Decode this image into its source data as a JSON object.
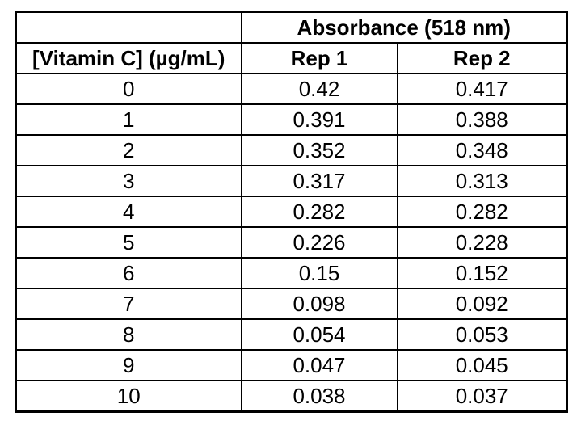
{
  "table": {
    "spanning_header": "Absorbance (518 nm)",
    "columns": [
      "[Vitamin C] (µg/mL)",
      "Rep 1",
      "Rep 2"
    ],
    "rows": [
      [
        "0",
        "0.42",
        "0.417"
      ],
      [
        "1",
        "0.391",
        "0.388"
      ],
      [
        "2",
        "0.352",
        "0.348"
      ],
      [
        "3",
        "0.317",
        "0.313"
      ],
      [
        "4",
        "0.282",
        "0.282"
      ],
      [
        "5",
        "0.226",
        "0.228"
      ],
      [
        "6",
        "0.15",
        "0.152"
      ],
      [
        "7",
        "0.098",
        "0.092"
      ],
      [
        "8",
        "0.054",
        "0.053"
      ],
      [
        "9",
        "0.047",
        "0.045"
      ],
      [
        "10",
        "0.038",
        "0.037"
      ]
    ]
  },
  "colors": {
    "border": "#000000",
    "text": "#000000",
    "background": "#ffffff"
  },
  "chart_data": {
    "type": "table",
    "title": "Absorbance (518 nm)",
    "xlabel": "[Vitamin C] (µg/mL)",
    "categories": [
      0,
      1,
      2,
      3,
      4,
      5,
      6,
      7,
      8,
      9,
      10
    ],
    "series": [
      {
        "name": "Rep 1",
        "values": [
          0.42,
          0.391,
          0.352,
          0.317,
          0.282,
          0.226,
          0.15,
          0.098,
          0.054,
          0.047,
          0.038
        ]
      },
      {
        "name": "Rep 2",
        "values": [
          0.417,
          0.388,
          0.348,
          0.313,
          0.282,
          0.228,
          0.152,
          0.092,
          0.053,
          0.045,
          0.037
        ]
      }
    ]
  }
}
